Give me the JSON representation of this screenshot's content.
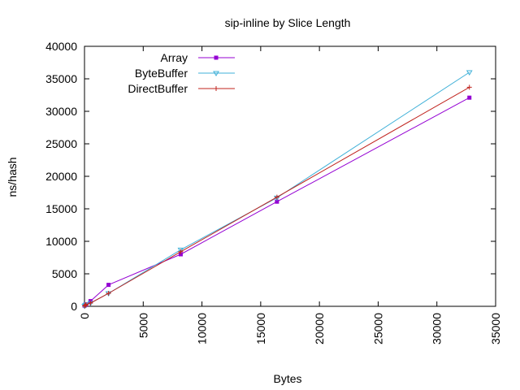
{
  "chart_data": {
    "type": "line",
    "title": "sip-inline by Slice Length",
    "xlabel": "Bytes",
    "ylabel": "ns/hash",
    "xlim": [
      0,
      35000
    ],
    "ylim": [
      0,
      40000
    ],
    "xticks": [
      "0",
      "5000",
      "10000",
      "15000",
      "20000",
      "25000",
      "30000",
      "35000"
    ],
    "yticks": [
      "0",
      "5000",
      "10000",
      "15000",
      "20000",
      "25000",
      "30000",
      "35000",
      "40000"
    ],
    "grid": false,
    "legend_position": "top-left",
    "series": [
      {
        "name": "Array",
        "color": "#9400d3",
        "marker": "square",
        "x": [
          8,
          64,
          128,
          512,
          2048,
          8192,
          16384,
          32768
        ],
        "y": [
          100,
          200,
          300,
          800,
          3300,
          8000,
          16100,
          32100
        ]
      },
      {
        "name": "ByteBuffer",
        "color": "#3fb0d8",
        "marker": "triangle-down",
        "x": [
          8,
          64,
          128,
          512,
          2048,
          8192,
          16384,
          32768
        ],
        "y": [
          50,
          150,
          250,
          500,
          2000,
          8700,
          16700,
          36000
        ]
      },
      {
        "name": "DirectBuffer",
        "color": "#c0231e",
        "marker": "plus",
        "x": [
          8,
          64,
          128,
          512,
          2048,
          8192,
          16384,
          32768
        ],
        "y": [
          50,
          150,
          250,
          500,
          2000,
          8400,
          16800,
          33700
        ]
      }
    ]
  }
}
